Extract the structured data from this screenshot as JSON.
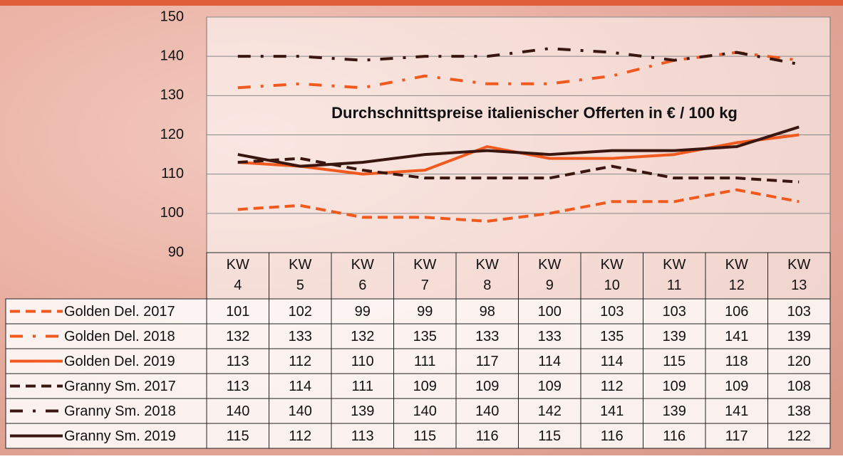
{
  "chart_data": {
    "type": "line",
    "title": "Durchschnittspreise italienischer Offerten in € / 100 kg",
    "categories": [
      "KW 4",
      "KW 5",
      "KW 6",
      "KW 7",
      "KW 8",
      "KW 9",
      "KW 10",
      "KW 11",
      "KW 12",
      "KW 13"
    ],
    "ylim": [
      90,
      150
    ],
    "yticks": [
      90,
      100,
      110,
      120,
      130,
      140,
      150
    ],
    "grid": true,
    "series": [
      {
        "name": "Golden Del. 2017",
        "color": "#f05a1e",
        "dash": "dashed",
        "values": [
          101,
          102,
          99,
          99,
          98,
          100,
          103,
          103,
          106,
          103
        ]
      },
      {
        "name": "Golden Del. 2018",
        "color": "#f05a1e",
        "dash": "dashdot",
        "values": [
          132,
          133,
          132,
          135,
          133,
          133,
          135,
          139,
          141,
          139
        ]
      },
      {
        "name": "Golden Del. 2019",
        "color": "#f05a1e",
        "dash": "solid",
        "values": [
          113,
          112,
          110,
          111,
          117,
          114,
          114,
          115,
          118,
          120
        ]
      },
      {
        "name": "Granny Sm. 2017",
        "color": "#3a1610",
        "dash": "dashed",
        "values": [
          113,
          114,
          111,
          109,
          109,
          109,
          112,
          109,
          109,
          108
        ]
      },
      {
        "name": "Granny Sm. 2018",
        "color": "#3a1610",
        "dash": "dashdot",
        "values": [
          140,
          140,
          139,
          140,
          140,
          142,
          141,
          139,
          141,
          138
        ]
      },
      {
        "name": "Granny Sm. 2019",
        "color": "#3a1610",
        "dash": "solid",
        "values": [
          115,
          112,
          113,
          115,
          116,
          115,
          116,
          116,
          117,
          122
        ]
      }
    ]
  }
}
